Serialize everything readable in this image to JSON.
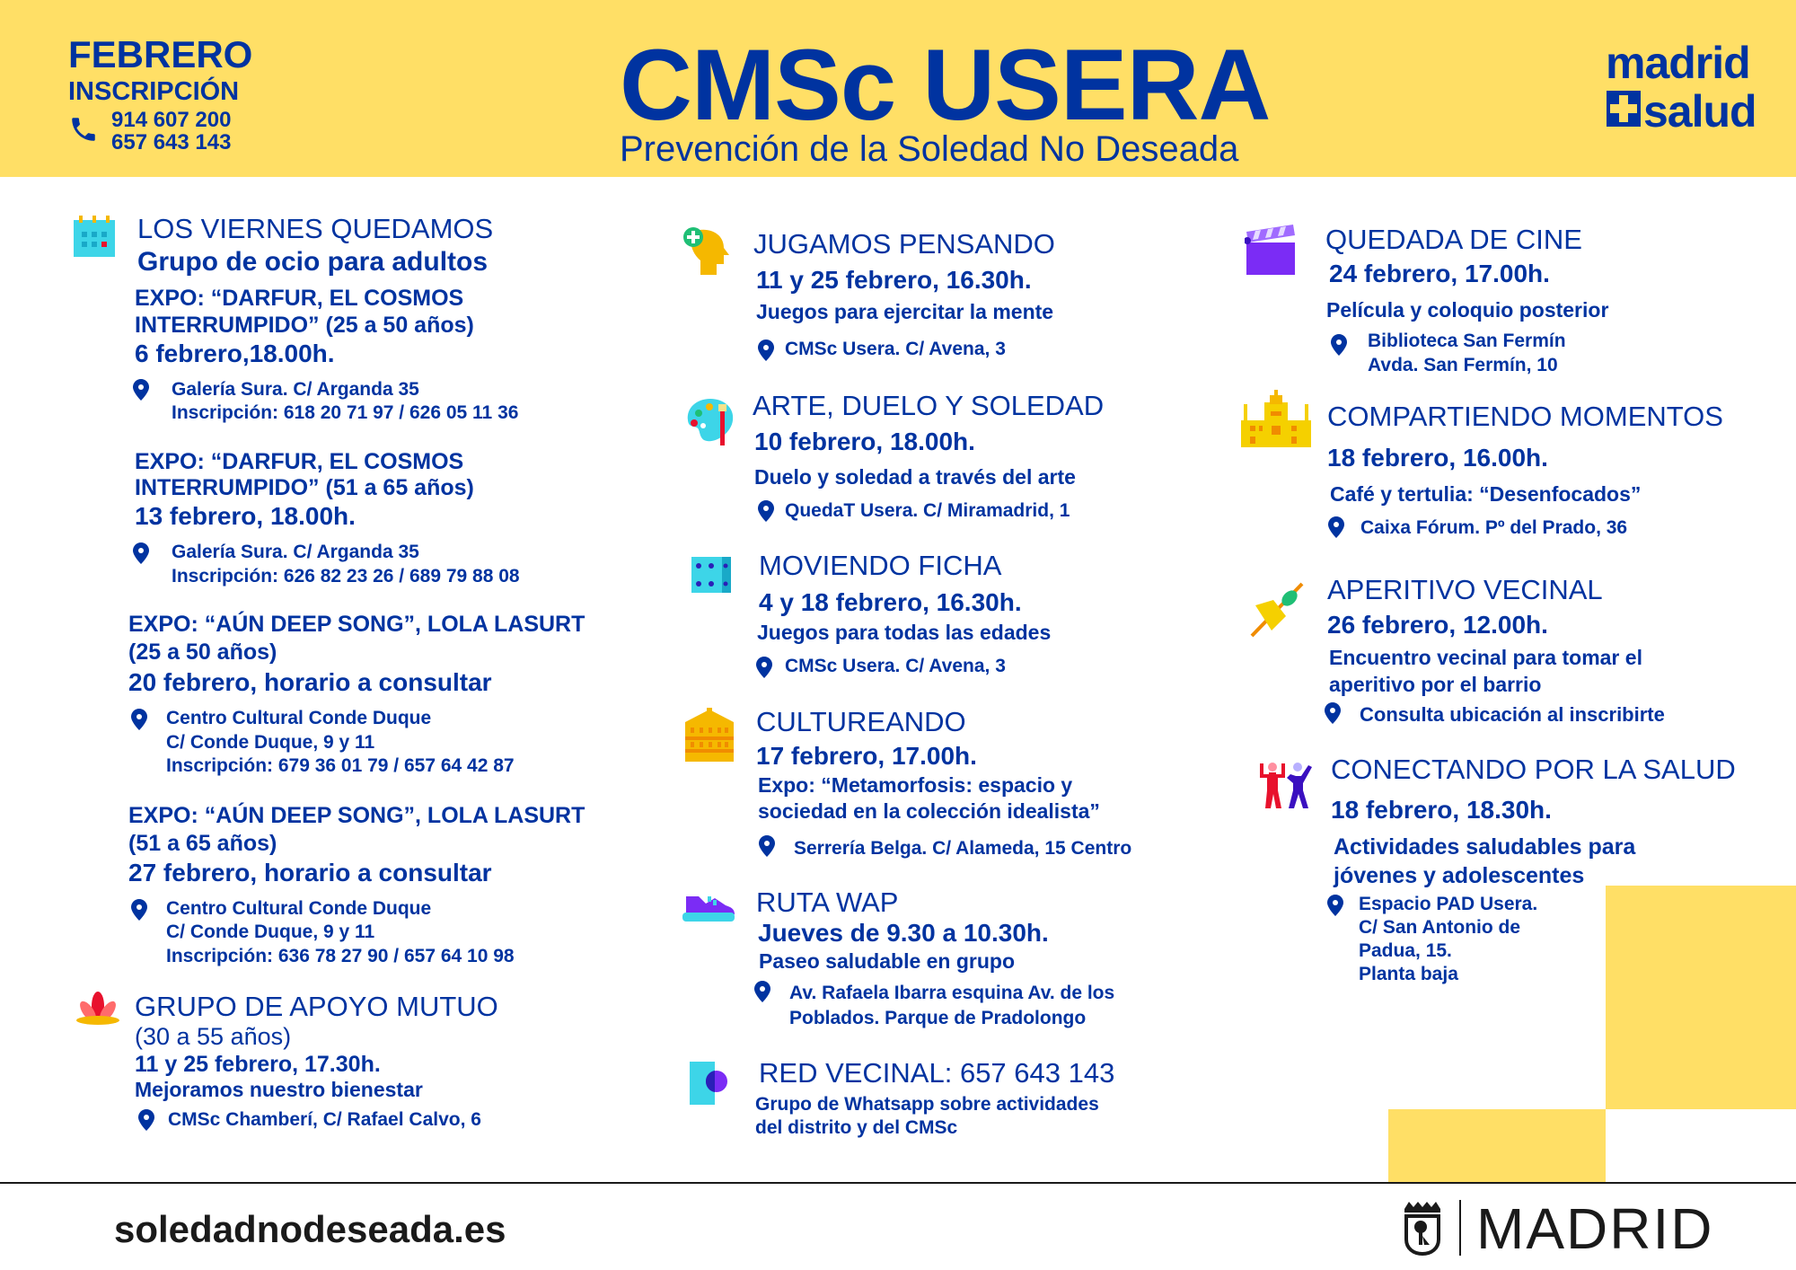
{
  "colors": {
    "blue": "#0033a0",
    "yellow": "#ffdf66",
    "dark": "#1a1a1a"
  },
  "header": {
    "month": "FEBRERO",
    "inscription": "INSCRIPCIÓN",
    "phones": [
      "914 607 200",
      "657 643 143"
    ],
    "title": "CMSc USERA",
    "subtitle": "Prevención de la Soledad No Deseada",
    "logo": [
      "madrid",
      "salud"
    ]
  },
  "left": {
    "title": "LOS VIERNES QUEDAMOS",
    "subtitle": "Grupo de ocio para adultos",
    "expos": [
      {
        "lines": [
          "EXPO: “DARFUR, EL COSMOS",
          "INTERRUMPIDO” (25 a 50 años)"
        ],
        "date": "6 febrero,18.00h.",
        "address": [
          "Galería Sura. C/ Arganda 35",
          "Inscripción: 618 20 71 97 / 626 05 11 36"
        ]
      },
      {
        "lines": [
          "EXPO: “DARFUR, EL COSMOS",
          "INTERRUMPIDO” (51 a 65 años)"
        ],
        "date": "13 febrero, 18.00h.",
        "address": [
          "Galería Sura. C/ Arganda 35",
          "Inscripción: 626 82 23 26 / 689 79 88 08"
        ]
      },
      {
        "lines": [
          "EXPO: “AÚN DEEP SONG”, LOLA LASURT",
          "(25 a 50 años)"
        ],
        "date": "20 febrero, horario a consultar",
        "address": [
          "Centro Cultural Conde Duque",
          "C/ Conde Duque, 9 y 11",
          "Inscripción: 679 36 01 79 / 657 64 42 87"
        ]
      },
      {
        "lines": [
          "EXPO: “AÚN DEEP SONG”, LOLA LASURT",
          "(51 a 65 años)"
        ],
        "date": "27 febrero, horario a consultar",
        "address": [
          "Centro Cultural Conde Duque",
          "C/ Conde Duque, 9 y 11",
          "Inscripción: 636 78 27 90 / 657 64 10 98"
        ]
      }
    ],
    "apoyo": {
      "title": "GRUPO DE APOYO MUTUO",
      "ages": "(30 a 55 años)",
      "date": "11 y 25 febrero, 17.30h.",
      "desc": "Mejoramos nuestro bienestar",
      "address": "CMSc Chamberí, C/ Rafael Calvo, 6"
    }
  },
  "middle": [
    {
      "icon": "head-puzzle-icon",
      "title": "JUGAMOS PENSANDO",
      "date": "11 y 25 febrero, 16.30h.",
      "desc": [
        "Juegos para ejercitar la mente"
      ],
      "address": [
        "CMSc Usera. C/ Avena, 3"
      ]
    },
    {
      "icon": "palette-icon",
      "title": "ARTE, DUELO Y SOLEDAD",
      "date": "10 febrero, 18.00h.",
      "desc": [
        "Duelo y soledad a través del arte"
      ],
      "address": [
        "QuedaT Usera. C/ Miramadrid, 1"
      ]
    },
    {
      "icon": "dice-icon",
      "title": "MOVIENDO FICHA",
      "date": "4 y 18 febrero, 16.30h.",
      "desc": [
        "Juegos  para todas las edades"
      ],
      "address": [
        "CMSc Usera. C/ Avena, 3"
      ]
    },
    {
      "icon": "theater-building-icon",
      "title": "CULTUREANDO",
      "date": "17 febrero, 17.00h.",
      "desc": [
        "Expo: “Metamorfosis: espacio y",
        "sociedad en la colección idealista”"
      ],
      "address": [
        "Serrería  Belga. C/ Alameda, 15 Centro"
      ]
    },
    {
      "icon": "sneaker-icon",
      "title": "RUTA WAP",
      "date": "Jueves de 9.30 a 10.30h.",
      "desc": [
        "Paseo saludable en grupo"
      ],
      "address": [
        "Av. Rafaela Ibarra esquina Av. de los",
        "Poblados. Parque de Pradolongo"
      ]
    },
    {
      "icon": "phone-chat-icon",
      "title": "RED VECINAL: 657 643 143",
      "desc": [
        "Grupo de Whatsapp sobre actividades",
        "del distrito y del CMSc"
      ]
    }
  ],
  "right": [
    {
      "icon": "clapperboard-icon",
      "title": "QUEDADA DE CINE",
      "date": "24 febrero, 17.00h.",
      "desc": [
        "Película y coloquio posterior"
      ],
      "address": [
        "Biblioteca San Fermín",
        "Avda. San Fermín, 10"
      ]
    },
    {
      "icon": "palace-icon",
      "title": "COMPARTIENDO MOMENTOS",
      "date": "18 febrero, 16.00h.",
      "desc": [
        "Café y tertulia: “Desenfocados”"
      ],
      "address": [
        "Caixa Fórum. Pº del Prado, 36"
      ]
    },
    {
      "icon": "tapa-skewer-icon",
      "title": "APERITIVO VECINAL",
      "date": "26 febrero, 12.00h.",
      "desc": [
        "Encuentro vecinal para tomar el",
        "aperitivo por el barrio"
      ],
      "address": [
        "Consulta ubicación al inscribirte"
      ]
    },
    {
      "icon": "people-dancing-icon",
      "title": "CONECTANDO POR LA SALUD",
      "date": "18 febrero, 18.30h.",
      "desc": [
        "Actividades saludables para",
        "jóvenes y adolescentes"
      ],
      "address": [
        "Espacio PAD Usera.",
        "C/ San Antonio de",
        "Padua, 15.",
        "Planta baja"
      ]
    }
  ],
  "footer": {
    "website": "soledadnodeseada.es",
    "city": "MADRID"
  }
}
